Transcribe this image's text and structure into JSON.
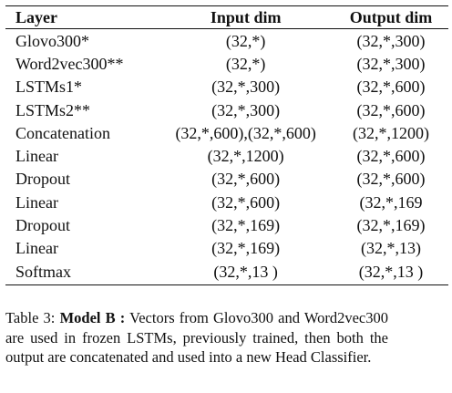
{
  "table": {
    "headers": [
      "Layer",
      "Input dim",
      "Output dim"
    ],
    "rows": [
      {
        "layer": "Glovo300*",
        "input": "(32,*)",
        "output": "(32,*,300)"
      },
      {
        "layer": "Word2vec300**",
        "input": "(32,*)",
        "output": "(32,*,300)"
      },
      {
        "layer": "LSTMs1*",
        "input": "(32,*,300)",
        "output": "(32,*,600)"
      },
      {
        "layer": "LSTMs2**",
        "input": "(32,*,300)",
        "output": "(32,*,600)"
      },
      {
        "layer": "Concatenation",
        "input": "(32,*,600),(32,*,600)",
        "output": "(32,*,1200)"
      },
      {
        "layer": "Linear",
        "input": "(32,*,1200)",
        "output": "(32,*,600)"
      },
      {
        "layer": "Dropout",
        "input": "(32,*,600)",
        "output": "(32,*,600)"
      },
      {
        "layer": "Linear",
        "input": "(32,*,600)",
        "output": "(32,*,169"
      },
      {
        "layer": "Dropout",
        "input": "(32,*,169)",
        "output": "(32,*,169)"
      },
      {
        "layer": "Linear",
        "input": "(32,*,169)",
        "output": "(32,*,13)"
      },
      {
        "layer": "Softmax",
        "input": "(32,*,13 )",
        "output": "(32,*,13 )"
      }
    ]
  },
  "caption": {
    "label": "Table 3:",
    "model": "Model B :",
    "text": "Vectors from Glovo300 and Word2vec300 are used in frozen LSTMs, previously trained, then both the output are concatenated and used into a new Head Classifier."
  }
}
